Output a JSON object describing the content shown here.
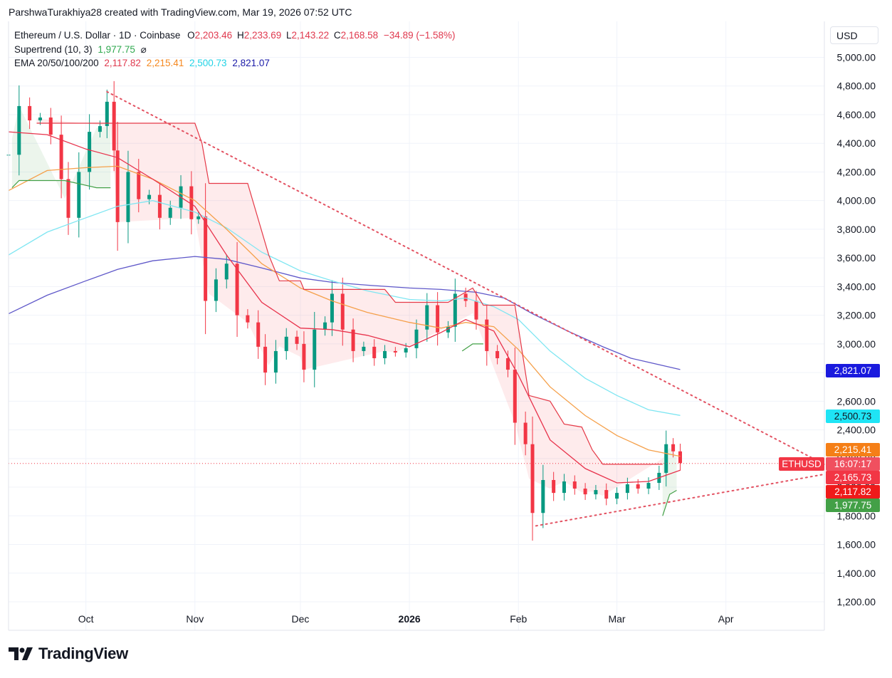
{
  "header": {
    "attribution": "ParshwaTurakhiya28 created with TradingView.com, Mar 19, 2026 07:52 UTC"
  },
  "legend": {
    "symbol": "Ethereum / U.S. Dollar · 1D · Coinbase",
    "o_label": "O",
    "o_value": "2,203.46",
    "h_label": "H",
    "h_value": "2,233.69",
    "l_label": "L",
    "l_value": "2,143.22",
    "c_label": "C",
    "c_value": "2,168.58",
    "change": "−34.89 (−1.58%)",
    "supertrend_label": "Supertrend (10, 3)",
    "supertrend_value": "1,977.75",
    "supertrend_icon": "⌀",
    "ema_label": "EMA 20/50/100/200",
    "ema20": "2,117.82",
    "ema50": "2,215.41",
    "ema100": "2,500.73",
    "ema200": "2,821.07"
  },
  "currency_button": "USD",
  "price_tags": {
    "ema200": "2,821.07",
    "ema100": "2,500.73",
    "ema50": "2,215.41",
    "symbol": "ETHUSD",
    "countdown": "16:07:17",
    "last_price": "2,165.73",
    "ema20": "2,117.82",
    "supertrend": "1,977.75"
  },
  "brand": "TradingView",
  "colors": {
    "up": "#089981",
    "down": "#f23645",
    "ema20": "#e8334c",
    "ema50": "#f5a04a",
    "ema100": "#7fe6f2",
    "ema200": "#5f58c9",
    "supertrend_up": "#43a047",
    "supertrend_down": "#e53947",
    "trendline": "#e35262"
  },
  "chart_data": {
    "type": "candlestick",
    "title": "Ethereum / U.S. Dollar · 1D · Coinbase",
    "ylim": [
      1100,
      5150
    ],
    "y_ticks": [
      5000,
      4800,
      4600,
      4400,
      4200,
      4000,
      3800,
      3600,
      3400,
      3200,
      3000,
      2800,
      2600,
      2400,
      2200,
      2000,
      1800,
      1600,
      1400,
      1200
    ],
    "y_tick_labels": [
      "5,000.00",
      "4,800.00",
      "4,600.00",
      "4,400.00",
      "4,200.00",
      "4,000.00",
      "3,800.00",
      "3,600.00",
      "3,400.00",
      "3,200.00",
      "3,000.00",
      "2,800.00",
      "2,600.00",
      "2,400.00",
      "2,200.00",
      "2,000.00",
      "1,800.00",
      "1,600.00",
      "1,400.00",
      "1,200.00"
    ],
    "x_ticks": [
      {
        "label": "Oct",
        "date": "2025-10-01"
      },
      {
        "label": "Nov",
        "date": "2025-11-01"
      },
      {
        "label": "Dec",
        "date": "2025-12-01"
      },
      {
        "label": "2026",
        "date": "2026-01-01",
        "bold": true
      },
      {
        "label": "Feb",
        "date": "2026-02-01"
      },
      {
        "label": "Mar",
        "date": "2026-03-01"
      },
      {
        "label": "Apr",
        "date": "2026-04-01"
      }
    ],
    "x_start": "2025-09-09",
    "x_end": "2026-04-29",
    "current_price": 2165.73,
    "close_series": [
      [
        "2025-09-09",
        4320
      ],
      [
        "2025-09-12",
        4660
      ],
      [
        "2025-09-15",
        4560
      ],
      [
        "2025-09-18",
        4580
      ],
      [
        "2025-09-21",
        4460
      ],
      [
        "2025-09-24",
        4150
      ],
      [
        "2025-09-26",
        3880
      ],
      [
        "2025-09-29",
        4200
      ],
      [
        "2025-10-02",
        4480
      ],
      [
        "2025-10-05",
        4520
      ],
      [
        "2025-10-07",
        4690
      ],
      [
        "2025-10-09",
        4350
      ],
      [
        "2025-10-10",
        3850
      ],
      [
        "2025-10-13",
        4200
      ],
      [
        "2025-10-16",
        4010
      ],
      [
        "2025-10-19",
        4040
      ],
      [
        "2025-10-22",
        3880
      ],
      [
        "2025-10-25",
        3950
      ],
      [
        "2025-10-28",
        4100
      ],
      [
        "2025-10-31",
        3870
      ],
      [
        "2025-11-02",
        3890
      ],
      [
        "2025-11-04",
        3300
      ],
      [
        "2025-11-07",
        3450
      ],
      [
        "2025-11-10",
        3560
      ],
      [
        "2025-11-13",
        3200
      ],
      [
        "2025-11-16",
        3150
      ],
      [
        "2025-11-19",
        2980
      ],
      [
        "2025-11-21",
        2800
      ],
      [
        "2025-11-24",
        2950
      ],
      [
        "2025-11-27",
        3050
      ],
      [
        "2025-11-30",
        3000
      ],
      [
        "2025-12-02",
        2820
      ],
      [
        "2025-12-05",
        3100
      ],
      [
        "2025-12-08",
        3150
      ],
      [
        "2025-12-10",
        3350
      ],
      [
        "2025-12-13",
        3100
      ],
      [
        "2025-12-16",
        2950
      ],
      [
        "2025-12-19",
        2980
      ],
      [
        "2025-12-22",
        2900
      ],
      [
        "2025-12-25",
        2950
      ],
      [
        "2025-12-28",
        2940
      ],
      [
        "2025-12-31",
        2970
      ],
      [
        "2026-01-03",
        3100
      ],
      [
        "2026-01-06",
        3270
      ],
      [
        "2026-01-09",
        3080
      ],
      [
        "2026-01-12",
        3120
      ],
      [
        "2026-01-14",
        3350
      ],
      [
        "2026-01-17",
        3300
      ],
      [
        "2026-01-20",
        3170
      ],
      [
        "2026-01-23",
        2950
      ],
      [
        "2026-01-26",
        2900
      ],
      [
        "2026-01-29",
        2820
      ],
      [
        "2026-01-31",
        2450
      ],
      [
        "2026-02-03",
        2300
      ],
      [
        "2026-02-05",
        1820
      ],
      [
        "2026-02-08",
        2050
      ],
      [
        "2026-02-11",
        1960
      ],
      [
        "2026-02-14",
        2040
      ],
      [
        "2026-02-17",
        1990
      ],
      [
        "2026-02-20",
        1950
      ],
      [
        "2026-02-23",
        1980
      ],
      [
        "2026-02-26",
        1920
      ],
      [
        "2026-03-01",
        1960
      ],
      [
        "2026-03-04",
        2020
      ],
      [
        "2026-03-07",
        1990
      ],
      [
        "2026-03-10",
        2030
      ],
      [
        "2026-03-13",
        2100
      ],
      [
        "2026-03-15",
        2300
      ],
      [
        "2026-03-17",
        2250
      ],
      [
        "2026-03-19",
        2168.58
      ]
    ],
    "ema20": [
      [
        "2025-09-09",
        4480
      ],
      [
        "2025-09-20",
        4460
      ],
      [
        "2025-10-01",
        4360
      ],
      [
        "2025-10-10",
        4300
      ],
      [
        "2025-10-20",
        4150
      ],
      [
        "2025-11-01",
        3960
      ],
      [
        "2025-11-10",
        3620
      ],
      [
        "2025-11-20",
        3290
      ],
      [
        "2025-12-01",
        3110
      ],
      [
        "2025-12-10",
        3100
      ],
      [
        "2025-12-20",
        3060
      ],
      [
        "2026-01-01",
        2980
      ],
      [
        "2026-01-10",
        3080
      ],
      [
        "2026-01-17",
        3170
      ],
      [
        "2026-01-25",
        3090
      ],
      [
        "2026-02-01",
        2780
      ],
      [
        "2026-02-10",
        2330
      ],
      [
        "2026-02-20",
        2130
      ],
      [
        "2026-03-01",
        2030
      ],
      [
        "2026-03-10",
        2040
      ],
      [
        "2026-03-19",
        2117.82
      ]
    ],
    "ema50": [
      [
        "2025-09-09",
        4070
      ],
      [
        "2025-09-20",
        4210
      ],
      [
        "2025-10-01",
        4230
      ],
      [
        "2025-10-10",
        4240
      ],
      [
        "2025-10-20",
        4150
      ],
      [
        "2025-11-01",
        4000
      ],
      [
        "2025-11-10",
        3800
      ],
      [
        "2025-11-20",
        3560
      ],
      [
        "2025-12-01",
        3390
      ],
      [
        "2025-12-10",
        3300
      ],
      [
        "2025-12-20",
        3220
      ],
      [
        "2026-01-01",
        3150
      ],
      [
        "2026-01-10",
        3110
      ],
      [
        "2026-01-17",
        3150
      ],
      [
        "2026-01-25",
        3120
      ],
      [
        "2026-02-01",
        2960
      ],
      [
        "2026-02-10",
        2700
      ],
      [
        "2026-02-20",
        2500
      ],
      [
        "2026-03-01",
        2360
      ],
      [
        "2026-03-10",
        2260
      ],
      [
        "2026-03-19",
        2215.41
      ]
    ],
    "ema100": [
      [
        "2025-09-09",
        3620
      ],
      [
        "2025-09-20",
        3780
      ],
      [
        "2025-10-01",
        3880
      ],
      [
        "2025-10-10",
        3960
      ],
      [
        "2025-10-20",
        4000
      ],
      [
        "2025-11-01",
        3920
      ],
      [
        "2025-11-10",
        3810
      ],
      [
        "2025-11-20",
        3640
      ],
      [
        "2025-12-01",
        3510
      ],
      [
        "2025-12-10",
        3440
      ],
      [
        "2025-12-20",
        3370
      ],
      [
        "2026-01-01",
        3310
      ],
      [
        "2026-01-10",
        3300
      ],
      [
        "2026-01-17",
        3320
      ],
      [
        "2026-01-25",
        3260
      ],
      [
        "2026-02-01",
        3170
      ],
      [
        "2026-02-10",
        2950
      ],
      [
        "2026-02-20",
        2760
      ],
      [
        "2026-03-01",
        2640
      ],
      [
        "2026-03-10",
        2540
      ],
      [
        "2026-03-19",
        2500.73
      ]
    ],
    "ema200": [
      [
        "2025-09-09",
        3210
      ],
      [
        "2025-09-20",
        3340
      ],
      [
        "2025-10-01",
        3440
      ],
      [
        "2025-10-10",
        3520
      ],
      [
        "2025-10-20",
        3580
      ],
      [
        "2025-11-01",
        3610
      ],
      [
        "2025-11-10",
        3590
      ],
      [
        "2025-11-20",
        3530
      ],
      [
        "2025-12-01",
        3460
      ],
      [
        "2025-12-10",
        3430
      ],
      [
        "2025-12-20",
        3410
      ],
      [
        "2026-01-01",
        3390
      ],
      [
        "2026-01-10",
        3380
      ],
      [
        "2026-01-20",
        3360
      ],
      [
        "2026-01-28",
        3320
      ],
      [
        "2026-02-05",
        3210
      ],
      [
        "2026-02-15",
        3090
      ],
      [
        "2026-02-25",
        2980
      ],
      [
        "2026-03-05",
        2900
      ],
      [
        "2026-03-19",
        2821.07
      ]
    ],
    "supertrend_down": [
      [
        "2025-09-17",
        4540
      ],
      [
        "2025-10-08",
        4540
      ],
      [
        "2025-10-10",
        4540
      ],
      [
        "2025-11-01",
        4540
      ],
      [
        "2025-11-03",
        4400
      ],
      [
        "2025-11-05",
        4120
      ],
      [
        "2025-11-16",
        4120
      ],
      [
        "2025-11-22",
        3620
      ],
      [
        "2025-11-25",
        3440
      ],
      [
        "2025-12-01",
        3440
      ],
      [
        "2025-12-02",
        3380
      ],
      [
        "2025-12-25",
        3380
      ],
      [
        "2025-12-28",
        3290
      ],
      [
        "2026-01-12",
        3290
      ],
      [
        "2026-01-19",
        3390
      ],
      [
        "2026-01-22",
        3270
      ],
      [
        "2026-01-31",
        3270
      ],
      [
        "2026-02-04",
        2640
      ],
      [
        "2026-02-10",
        2600
      ],
      [
        "2026-02-14",
        2440
      ],
      [
        "2026-02-19",
        2420
      ],
      [
        "2026-02-22",
        2260
      ],
      [
        "2026-02-25",
        2160
      ],
      [
        "2026-03-14",
        2160
      ]
    ],
    "supertrend_up": [
      [
        "2025-09-10",
        4090
      ],
      [
        "2025-09-12",
        4140
      ],
      [
        "2025-09-25",
        4140
      ],
      [
        "2025-10-04",
        4090
      ],
      [
        "2025-10-08",
        4090
      ],
      [
        "2026-01-16",
        2950
      ],
      [
        "2026-01-19",
        3000
      ],
      [
        "2026-01-22",
        3000
      ],
      [
        "2026-03-14",
        1800
      ],
      [
        "2026-03-16",
        1950
      ],
      [
        "2026-03-18",
        1977.75
      ]
    ],
    "trendline_upper": [
      [
        "2025-10-07",
        4760
      ],
      [
        "2026-04-29",
        2160
      ]
    ],
    "trendline_lower": [
      [
        "2026-02-06",
        1730
      ],
      [
        "2026-04-29",
        2090
      ]
    ]
  }
}
